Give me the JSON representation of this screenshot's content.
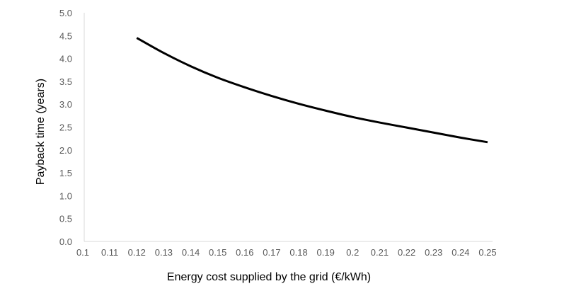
{
  "chart_data": {
    "type": "line",
    "title": "",
    "xlabel": "Energy cost supplied by the grid (€/kWh)",
    "ylabel": "Payback time (years)",
    "xlim": [
      0.1,
      0.25
    ],
    "ylim": [
      0,
      5
    ],
    "x_ticks": [
      "0.1",
      "0.11",
      "0.12",
      "0.13",
      "0.14",
      "0.15",
      "0.16",
      "0.17",
      "0.18",
      "0.19",
      "0.2",
      "0.21",
      "0.22",
      "0.23",
      "0.24",
      "0.25"
    ],
    "y_ticks": [
      "0.0",
      "0.5",
      "1.0",
      "1.5",
      "2.0",
      "2.5",
      "3.0",
      "3.5",
      "4.0",
      "4.5",
      "5.0"
    ],
    "grid": false,
    "legend": "none",
    "series": [
      {
        "name": "Payback time",
        "color": "#000000",
        "x": [
          0.12,
          0.13,
          0.14,
          0.15,
          0.16,
          0.17,
          0.18,
          0.19,
          0.2,
          0.21,
          0.22,
          0.23,
          0.24,
          0.25
        ],
        "y": [
          4.45,
          4.12,
          3.83,
          3.58,
          3.37,
          3.18,
          3.01,
          2.86,
          2.72,
          2.6,
          2.49,
          2.38,
          2.27,
          2.17
        ]
      }
    ]
  }
}
